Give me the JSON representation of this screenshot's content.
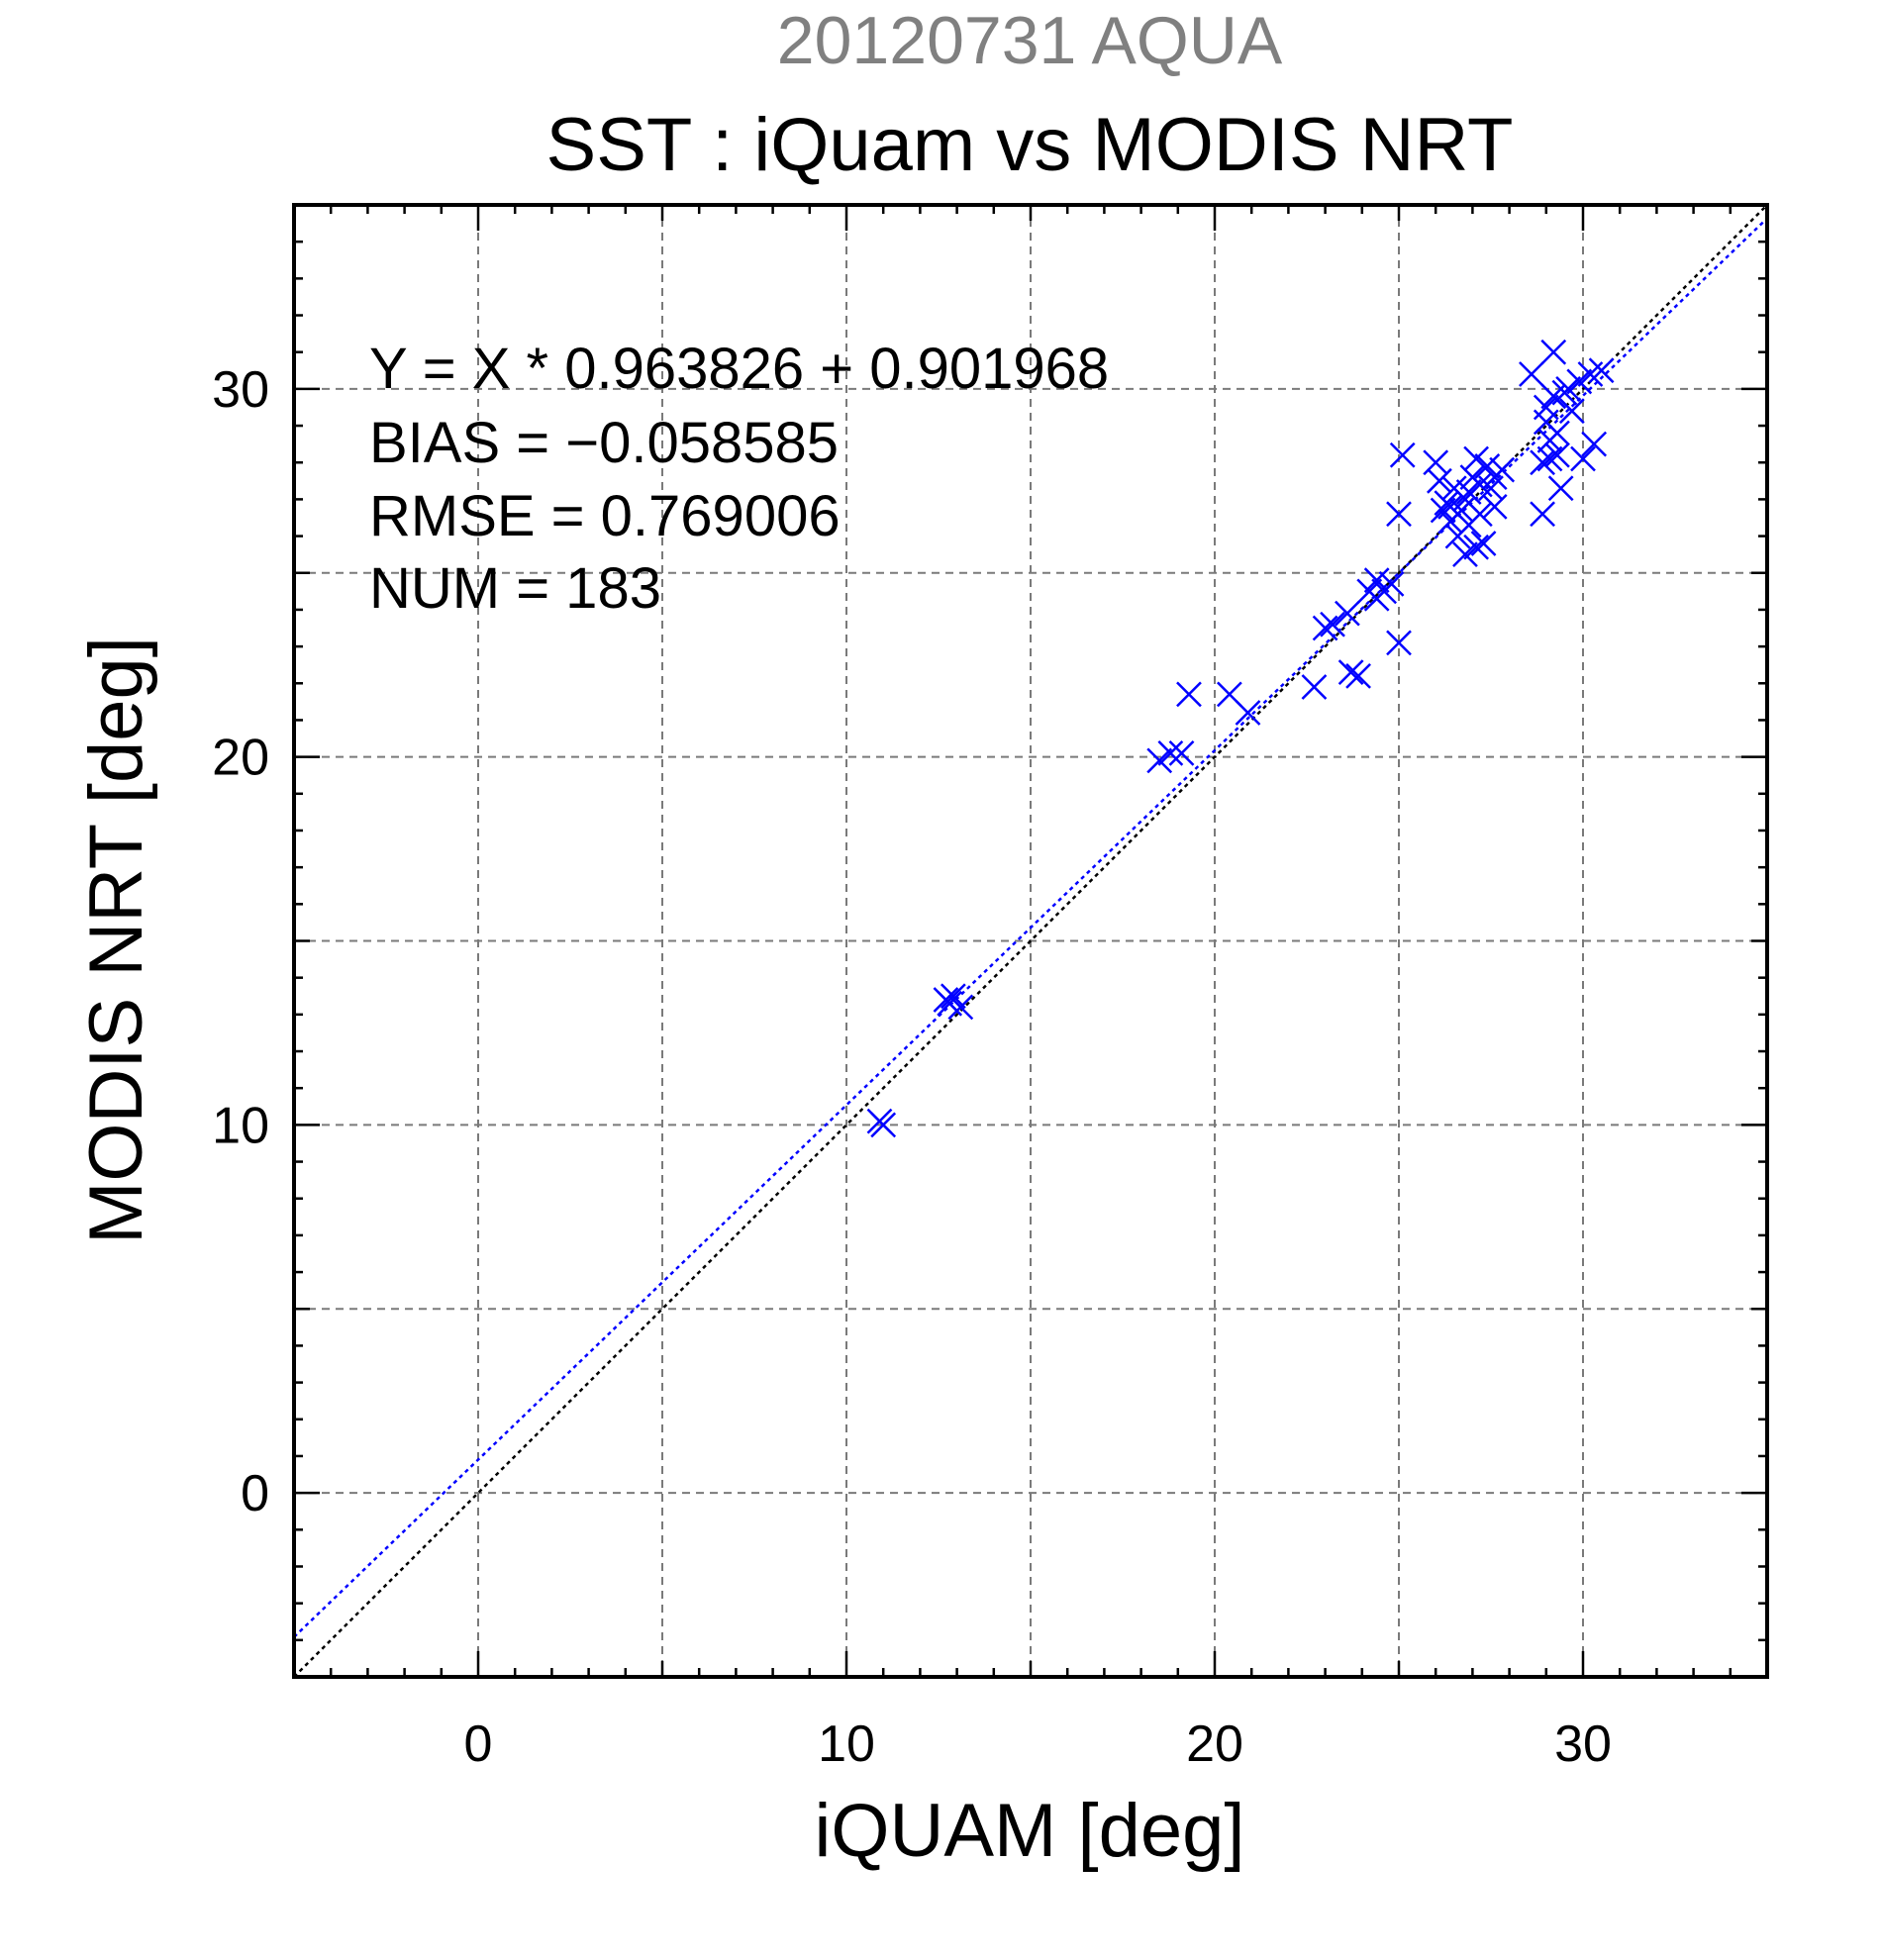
{
  "chart_data": {
    "type": "scatter",
    "title_top": "20120731 AQUA",
    "title": "SST : iQuam vs MODIS NRT",
    "xlabel": "iQUAM [deg]",
    "ylabel": "MODIS NRT [deg]",
    "xlim": [
      -5,
      35
    ],
    "ylim": [
      -5,
      35
    ],
    "grid": true,
    "xticks": [
      0,
      10,
      20,
      30
    ],
    "yticks": [
      0,
      10,
      20,
      30
    ],
    "x_tick_labels": [
      "0",
      "10",
      "20",
      "30"
    ],
    "y_tick_labels": [
      "0",
      "10",
      "20",
      "30"
    ],
    "stats": {
      "regression": "Y = X * 0.963826 + 0.901968",
      "bias": "BIAS = −0.058585",
      "rmse": "RMSE = 0.769006",
      "num": "NUM = 183"
    },
    "lines": [
      {
        "name": "1:1",
        "slope": 1.0,
        "intercept": 0.0,
        "color": "#000000"
      },
      {
        "name": "regression",
        "slope": 0.963826,
        "intercept": 0.901968,
        "color": "#0000ff"
      }
    ],
    "marker_color": "#0000ff",
    "points": [
      [
        10.9,
        10.1
      ],
      [
        11.0,
        10.0
      ],
      [
        12.7,
        13.4
      ],
      [
        12.9,
        13.5
      ],
      [
        13.1,
        13.2
      ],
      [
        12.8,
        13.3
      ],
      [
        18.5,
        19.9
      ],
      [
        18.8,
        20.1
      ],
      [
        19.1,
        20.1
      ],
      [
        19.3,
        21.7
      ],
      [
        20.4,
        21.7
      ],
      [
        20.9,
        21.2
      ],
      [
        22.7,
        21.9
      ],
      [
        23.0,
        23.5
      ],
      [
        23.2,
        23.6
      ],
      [
        23.6,
        23.9
      ],
      [
        23.7,
        22.3
      ],
      [
        23.9,
        22.2
      ],
      [
        24.2,
        24.5
      ],
      [
        24.4,
        24.8
      ],
      [
        24.6,
        24.5
      ],
      [
        24.8,
        24.7
      ],
      [
        24.4,
        24.3
      ],
      [
        25.0,
        26.6
      ],
      [
        25.0,
        23.1
      ],
      [
        25.1,
        28.2
      ],
      [
        26.0,
        28.0
      ],
      [
        26.1,
        27.5
      ],
      [
        26.2,
        26.7
      ],
      [
        26.3,
        26.9
      ],
      [
        26.4,
        26.4
      ],
      [
        26.5,
        27.3
      ],
      [
        26.6,
        26.0
      ],
      [
        26.7,
        26.7
      ],
      [
        26.8,
        25.5
      ],
      [
        26.9,
        27.2
      ],
      [
        27.0,
        27.6
      ],
      [
        27.1,
        28.1
      ],
      [
        27.2,
        26.6
      ],
      [
        27.3,
        25.8
      ],
      [
        27.4,
        27.9
      ],
      [
        27.5,
        27.3
      ],
      [
        27.6,
        26.8
      ],
      [
        27.8,
        27.8
      ],
      [
        26.9,
        26.3
      ],
      [
        27.1,
        25.7
      ],
      [
        26.4,
        26.8
      ],
      [
        26.8,
        27.0
      ],
      [
        27.2,
        27.4
      ],
      [
        27.6,
        27.6
      ],
      [
        28.6,
        30.4
      ],
      [
        28.9,
        28.0
      ],
      [
        28.9,
        26.6
      ],
      [
        29.0,
        29.1
      ],
      [
        29.1,
        28.6
      ],
      [
        29.2,
        29.8
      ],
      [
        29.3,
        28.2
      ],
      [
        29.4,
        27.3
      ],
      [
        29.5,
        29.9
      ],
      [
        29.6,
        30.0
      ],
      [
        29.2,
        31.0
      ],
      [
        29.0,
        29.5
      ],
      [
        29.7,
        29.4
      ],
      [
        29.9,
        30.2
      ],
      [
        30.2,
        30.4
      ],
      [
        30.0,
        28.1
      ],
      [
        30.3,
        28.5
      ],
      [
        30.5,
        30.5
      ],
      [
        29.3,
        28.8
      ],
      [
        29.1,
        28.1
      ]
    ]
  }
}
